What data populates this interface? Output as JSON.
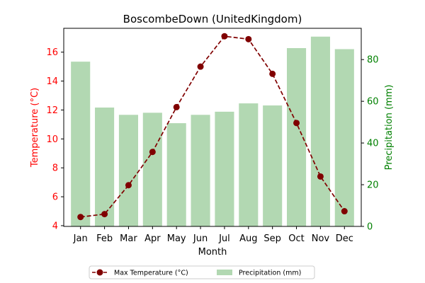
{
  "chart_data": {
    "type": "bar+line",
    "title": "BoscombeDown (UnitedKingdom)",
    "xlabel": "Month",
    "categories": [
      "Jan",
      "Feb",
      "Mar",
      "Apr",
      "May",
      "Jun",
      "Jul",
      "Aug",
      "Sep",
      "Oct",
      "Nov",
      "Dec"
    ],
    "y_left": {
      "label": "Temperature (°C)",
      "color": "#ff0000",
      "ylim": [
        3.95,
        17.65
      ],
      "ticks": [
        4,
        6,
        8,
        10,
        12,
        14,
        16
      ]
    },
    "y_right": {
      "label": "Precipitation (mm)",
      "color": "#008000",
      "ylim": [
        0,
        95
      ],
      "ticks": [
        0,
        20,
        40,
        60,
        80
      ]
    },
    "series": [
      {
        "name": "Max Temperature (°C)",
        "kind": "line",
        "axis": "left",
        "color": "#800000",
        "linestyle": "dashed",
        "marker": "circle",
        "values": [
          4.6,
          4.8,
          6.8,
          9.1,
          12.2,
          15.0,
          17.1,
          16.9,
          14.5,
          11.1,
          7.4,
          5.0
        ]
      },
      {
        "name": "Precipitation (mm)",
        "kind": "bar",
        "axis": "right",
        "color": "#b2d8b2",
        "values": [
          79,
          57,
          53.5,
          54.5,
          49.5,
          53.5,
          55,
          59,
          58,
          85.5,
          91,
          85
        ]
      }
    ],
    "legend": {
      "placement": "bottom-center",
      "entries": [
        "Max Temperature (°C)",
        "Precipitation (mm)"
      ]
    },
    "grid": false
  }
}
